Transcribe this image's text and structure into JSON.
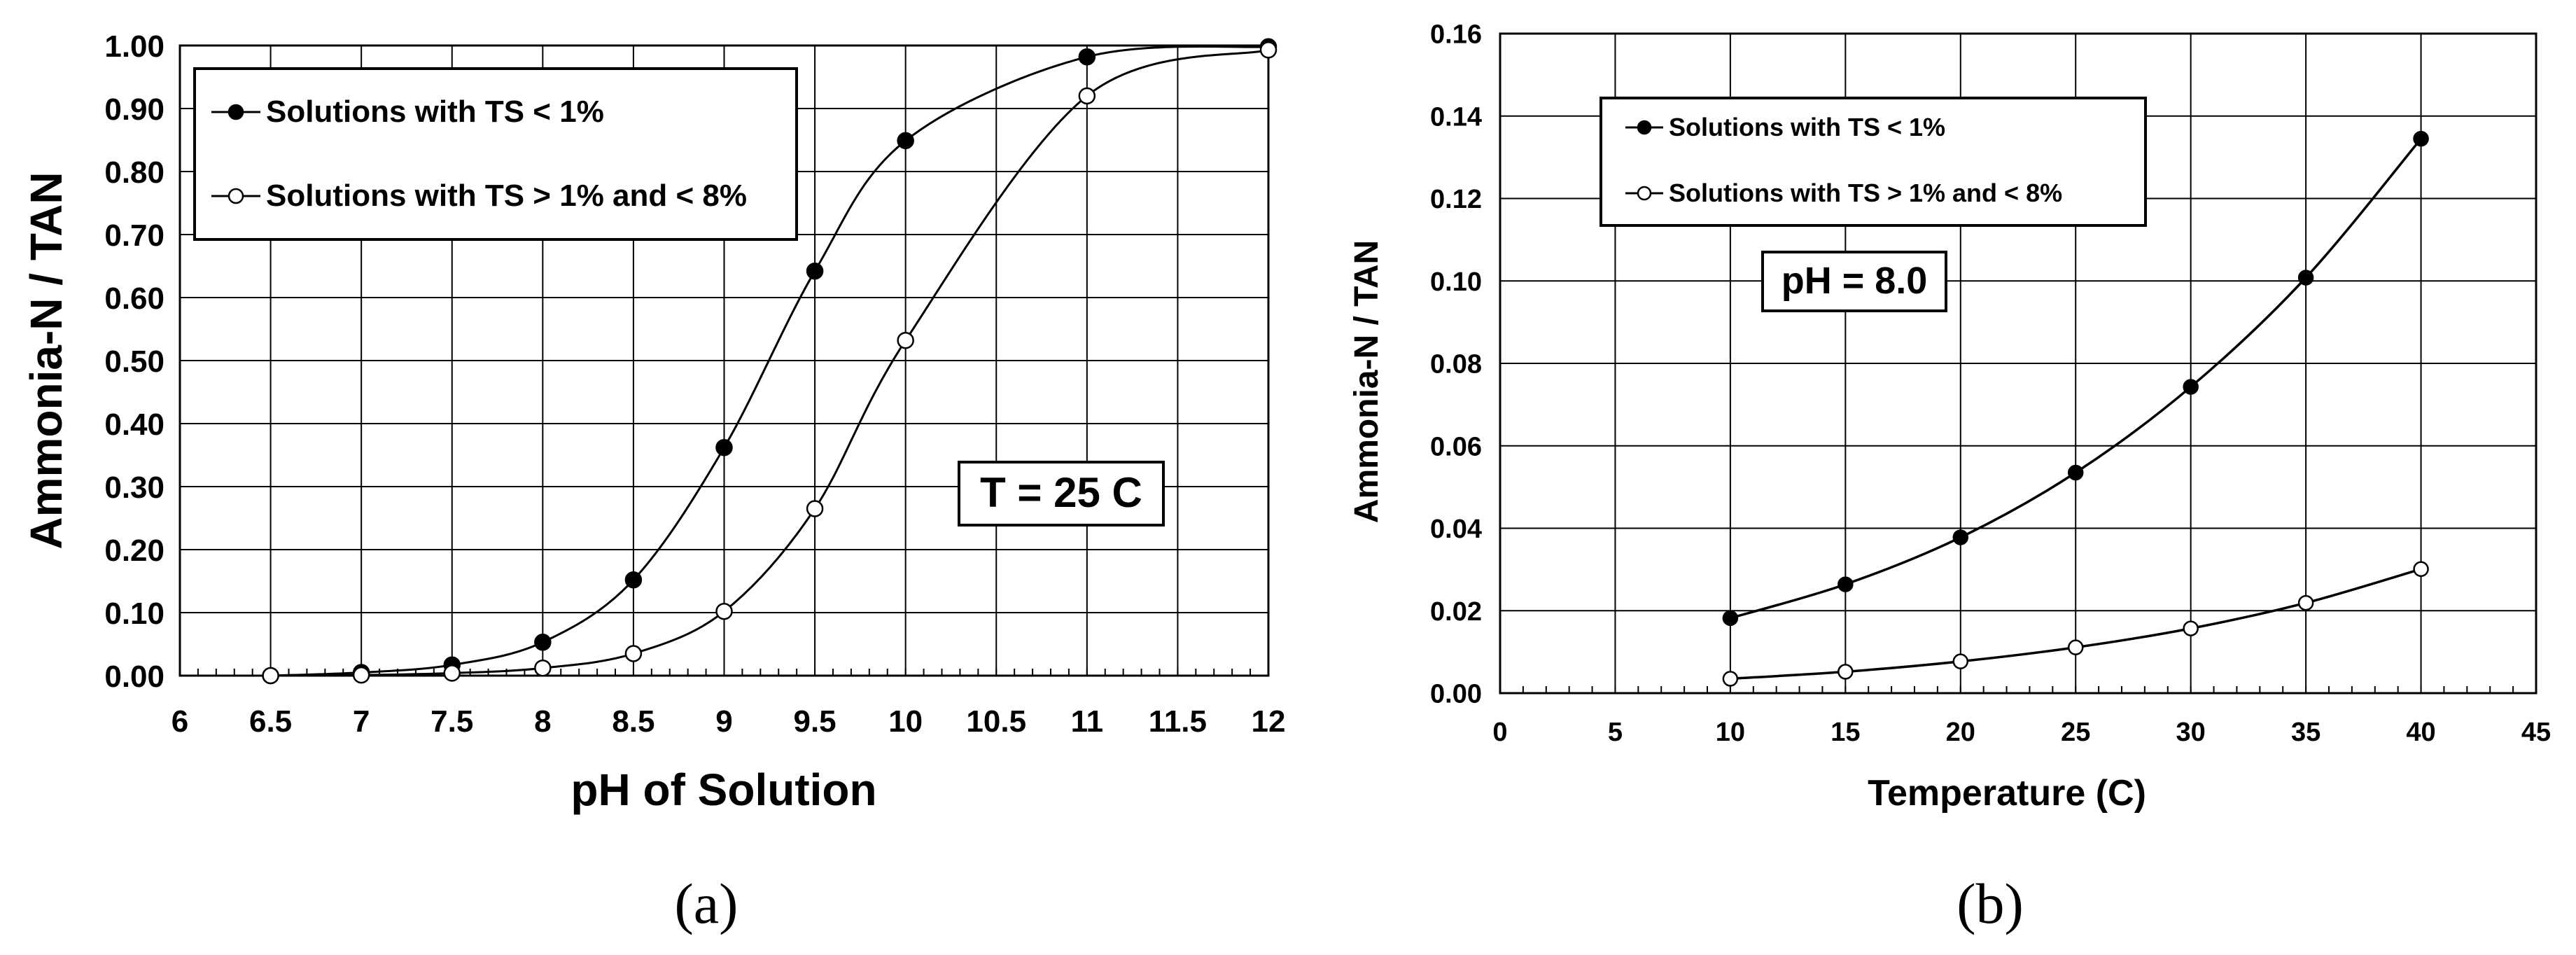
{
  "chart_data": [
    {
      "type": "line",
      "panel_label": "(a)",
      "xlabel": "pH of Solution",
      "ylabel": "Ammonia-N / TAN",
      "xlim": [
        6,
        12
      ],
      "ylim": [
        0,
        1
      ],
      "xticks": [
        "6",
        "6.5",
        "7",
        "7.5",
        "8",
        "8.5",
        "9",
        "9.5",
        "10",
        "10.5",
        "11",
        "11.5",
        "12"
      ],
      "yticks": [
        "0.00",
        "0.10",
        "0.20",
        "0.30",
        "0.40",
        "0.50",
        "0.60",
        "0.70",
        "0.80",
        "0.90",
        "1.00"
      ],
      "annotation": "T = 25 C",
      "grid": true,
      "legend_position": "top-left",
      "series": [
        {
          "name": "Solutions with TS < 1%",
          "marker": "filled",
          "x": [
            6.5,
            7,
            7.5,
            8,
            8.5,
            9,
            9.5,
            10,
            11,
            12
          ],
          "y": [
            0.0,
            0.005,
            0.017,
            0.053,
            0.152,
            0.362,
            0.642,
            0.849,
            0.982,
            0.998
          ]
        },
        {
          "name": "Solutions with TS > 1% and < 8%",
          "marker": "open",
          "x": [
            6.5,
            7,
            7.5,
            8,
            8.5,
            9,
            9.5,
            10,
            11,
            12
          ],
          "y": [
            0.0,
            0.001,
            0.004,
            0.012,
            0.035,
            0.102,
            0.265,
            0.532,
            0.92,
            0.993
          ]
        }
      ]
    },
    {
      "type": "line",
      "panel_label": "(b)",
      "xlabel": "Temperature (C)",
      "ylabel": "Ammonia-N / TAN",
      "xlim": [
        0,
        45
      ],
      "ylim": [
        0,
        0.16
      ],
      "xticks": [
        "0",
        "5",
        "10",
        "15",
        "20",
        "25",
        "30",
        "35",
        "40",
        "45"
      ],
      "yticks": [
        "0.00",
        "0.02",
        "0.04",
        "0.06",
        "0.08",
        "0.10",
        "0.12",
        "0.14",
        "0.16"
      ],
      "annotation": "pH = 8.0",
      "grid": true,
      "legend_position": "top-left",
      "series": [
        {
          "name": "Solutions with TS < 1%",
          "marker": "filled",
          "x": [
            10,
            15,
            20,
            25,
            30,
            35,
            40
          ],
          "y": [
            0.0182,
            0.0264,
            0.0378,
            0.0535,
            0.0743,
            0.1008,
            0.1345
          ]
        },
        {
          "name": "Solutions with TS > 1% and < 8%",
          "marker": "open",
          "x": [
            10,
            15,
            20,
            25,
            30,
            35,
            40
          ],
          "y": [
            0.0035,
            0.0052,
            0.0077,
            0.0111,
            0.0157,
            0.0219,
            0.0301
          ]
        }
      ]
    }
  ]
}
